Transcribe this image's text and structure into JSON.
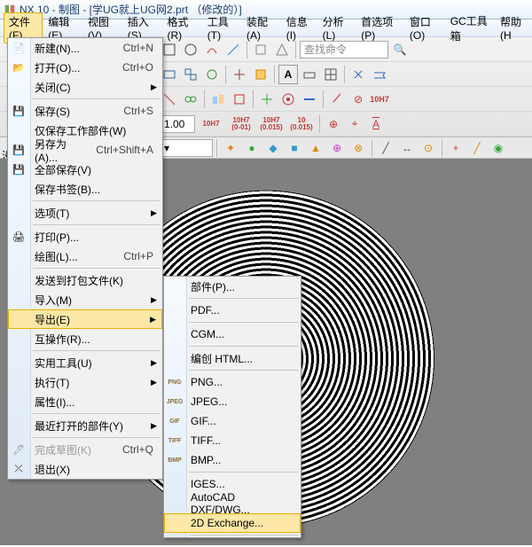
{
  "title": "NX 10 - 制图 - [学UG就上UG网2.prt （修改的）]",
  "menubar": [
    "文件(F)",
    "编辑(E)",
    "视图(V)",
    "插入(S)",
    "格式(R)",
    "工具(T)",
    "装配(A)",
    "信息(I)",
    "分析(L)",
    "首选项(P)",
    "窗口(O)",
    "GC工具箱",
    "帮助(H"
  ],
  "file_menu": [
    {
      "t": "item",
      "icon": "📄",
      "label": "新建(N)...",
      "sc": "Ctrl+N"
    },
    {
      "t": "item",
      "icon": "📂",
      "label": "打开(O)...",
      "sc": "Ctrl+O"
    },
    {
      "t": "item",
      "label": "关闭(C)",
      "arr": true
    },
    {
      "t": "sep"
    },
    {
      "t": "item",
      "icon": "💾",
      "label": "保存(S)",
      "sc": "Ctrl+S"
    },
    {
      "t": "item",
      "label": "仅保存工作部件(W)"
    },
    {
      "t": "item",
      "icon": "💾",
      "label": "另存为(A)...",
      "sc": "Ctrl+Shift+A"
    },
    {
      "t": "item",
      "icon": "💾",
      "label": "全部保存(V)"
    },
    {
      "t": "item",
      "label": "保存书签(B)..."
    },
    {
      "t": "sep"
    },
    {
      "t": "item",
      "label": "选项(T)",
      "arr": true
    },
    {
      "t": "sep"
    },
    {
      "t": "item",
      "icon": "🖨",
      "label": "打印(P)..."
    },
    {
      "t": "item",
      "label": "绘图(L)...",
      "sc": "Ctrl+P"
    },
    {
      "t": "sep"
    },
    {
      "t": "item",
      "label": "发送到打包文件(K)"
    },
    {
      "t": "item",
      "label": "导入(M)",
      "arr": true
    },
    {
      "t": "item",
      "label": "导出(E)",
      "arr": true,
      "hover": true
    },
    {
      "t": "item",
      "label": "互操作(R)..."
    },
    {
      "t": "sep"
    },
    {
      "t": "item",
      "label": "实用工具(U)",
      "arr": true
    },
    {
      "t": "item",
      "label": "执行(T)",
      "arr": true
    },
    {
      "t": "item",
      "label": "属性(I)..."
    },
    {
      "t": "sep"
    },
    {
      "t": "item",
      "label": "最近打开的部件(Y)",
      "arr": true
    },
    {
      "t": "sep"
    },
    {
      "t": "item",
      "icon": "🖊",
      "label": "完成草图(K)",
      "sc": "Ctrl+Q",
      "disabled": true
    },
    {
      "t": "item",
      "icon": "⤫",
      "label": "退出(X)"
    }
  ],
  "export_menu": [
    {
      "t": "item",
      "label": "部件(P)..."
    },
    {
      "t": "sep"
    },
    {
      "t": "item",
      "label": "PDF..."
    },
    {
      "t": "sep"
    },
    {
      "t": "item",
      "label": "CGM..."
    },
    {
      "t": "sep"
    },
    {
      "t": "item",
      "label": "编创 HTML..."
    },
    {
      "t": "sep"
    },
    {
      "t": "item",
      "icon": "PNG",
      "mini": true,
      "label": "PNG..."
    },
    {
      "t": "item",
      "icon": "JPEG",
      "mini": true,
      "label": "JPEG..."
    },
    {
      "t": "item",
      "icon": "GIF",
      "mini": true,
      "label": "GIF..."
    },
    {
      "t": "item",
      "icon": "TIFF",
      "mini": true,
      "label": "TIFF..."
    },
    {
      "t": "item",
      "icon": "BMP",
      "mini": true,
      "label": "BMP..."
    },
    {
      "t": "sep"
    },
    {
      "t": "item",
      "label": "IGES..."
    },
    {
      "t": "item",
      "label": "AutoCAD DXF/DWG..."
    },
    {
      "t": "item",
      "label": "2D Exchange...",
      "hover": true
    },
    {
      "t": "sep"
    }
  ],
  "search_placeholder": "查找命令",
  "row4_labels": [
    "1.00",
    "10H7",
    "10H7\n(0-01)",
    "10H7\n(0.015)",
    "10\n(0.015)"
  ],
  "status": "没"
}
